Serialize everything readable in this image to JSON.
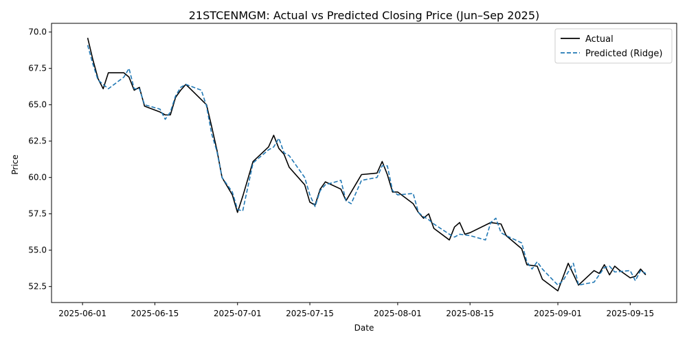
{
  "chart_data": {
    "type": "line",
    "title": "21STCENMGM: Actual vs Predicted Closing Price (Jun–Sep 2025)",
    "xlabel": "Date",
    "ylabel": "Price",
    "x_ticks": [
      "2025-06-01",
      "2025-06-15",
      "2025-07-01",
      "2025-07-15",
      "2025-08-01",
      "2025-08-15",
      "2025-09-01",
      "2025-09-15"
    ],
    "y_ticks": [
      52.5,
      55.0,
      57.5,
      60.0,
      62.5,
      65.0,
      67.5,
      70.0
    ],
    "y_tick_labels": [
      "52.5",
      "55.0",
      "57.5",
      "60.0",
      "62.5",
      "65.0",
      "67.5",
      "70.0"
    ],
    "xlim": [
      "2025-05-26",
      "2025-09-24"
    ],
    "ylim": [
      51.4,
      70.6
    ],
    "legend_position": "top-right",
    "grid": false,
    "series": [
      {
        "name": "Actual",
        "color": "#000000",
        "style": "solid",
        "points": [
          [
            "2025-06-02",
            69.6
          ],
          [
            "2025-06-03",
            68.1
          ],
          [
            "2025-06-04",
            66.8
          ],
          [
            "2025-06-05",
            66.1
          ],
          [
            "2025-06-06",
            67.2
          ],
          [
            "2025-06-09",
            67.2
          ],
          [
            "2025-06-10",
            66.9
          ],
          [
            "2025-06-11",
            66.0
          ],
          [
            "2025-06-12",
            66.2
          ],
          [
            "2025-06-13",
            64.9
          ],
          [
            "2025-06-16",
            64.5
          ],
          [
            "2025-06-17",
            64.3
          ],
          [
            "2025-06-18",
            64.3
          ],
          [
            "2025-06-19",
            65.5
          ],
          [
            "2025-06-20",
            66.0
          ],
          [
            "2025-06-21",
            66.4
          ],
          [
            "2025-06-25",
            65.0
          ],
          [
            "2025-06-26",
            63.5
          ],
          [
            "2025-06-27",
            61.9
          ],
          [
            "2025-06-28",
            60.0
          ],
          [
            "2025-06-30",
            58.8
          ],
          [
            "2025-07-01",
            57.6
          ],
          [
            "2025-07-02",
            58.7
          ],
          [
            "2025-07-04",
            61.1
          ],
          [
            "2025-07-07",
            62.1
          ],
          [
            "2025-07-08",
            62.9
          ],
          [
            "2025-07-09",
            62.0
          ],
          [
            "2025-07-10",
            61.6
          ],
          [
            "2025-07-11",
            60.7
          ],
          [
            "2025-07-14",
            59.5
          ],
          [
            "2025-07-15",
            58.3
          ],
          [
            "2025-07-16",
            58.1
          ],
          [
            "2025-07-17",
            59.2
          ],
          [
            "2025-07-18",
            59.7
          ],
          [
            "2025-07-21",
            59.2
          ],
          [
            "2025-07-22",
            58.4
          ],
          [
            "2025-07-24",
            59.6
          ],
          [
            "2025-07-25",
            60.2
          ],
          [
            "2025-07-28",
            60.3
          ],
          [
            "2025-07-29",
            61.1
          ],
          [
            "2025-07-30",
            60.2
          ],
          [
            "2025-07-31",
            59.0
          ],
          [
            "2025-08-01",
            59.0
          ],
          [
            "2025-08-04",
            58.2
          ],
          [
            "2025-08-05",
            57.6
          ],
          [
            "2025-08-06",
            57.2
          ],
          [
            "2025-08-07",
            57.5
          ],
          [
            "2025-08-08",
            56.5
          ],
          [
            "2025-08-11",
            55.7
          ],
          [
            "2025-08-12",
            56.6
          ],
          [
            "2025-08-13",
            56.9
          ],
          [
            "2025-08-14",
            56.1
          ],
          [
            "2025-08-15",
            56.2
          ],
          [
            "2025-08-19",
            56.9
          ],
          [
            "2025-08-21",
            56.8
          ],
          [
            "2025-08-22",
            56.0
          ],
          [
            "2025-08-25",
            55.1
          ],
          [
            "2025-08-26",
            54.0
          ],
          [
            "2025-08-28",
            53.9
          ],
          [
            "2025-08-29",
            53.0
          ],
          [
            "2025-09-01",
            52.2
          ],
          [
            "2025-09-03",
            54.1
          ],
          [
            "2025-09-05",
            52.6
          ],
          [
            "2025-09-08",
            53.6
          ],
          [
            "2025-09-09",
            53.4
          ],
          [
            "2025-09-10",
            54.0
          ],
          [
            "2025-09-11",
            53.3
          ],
          [
            "2025-09-12",
            53.9
          ],
          [
            "2025-09-13",
            53.6
          ],
          [
            "2025-09-15",
            53.1
          ],
          [
            "2025-09-16",
            53.2
          ],
          [
            "2025-09-17",
            53.7
          ],
          [
            "2025-09-18",
            53.3
          ]
        ]
      },
      {
        "name": "Predicted (Ridge)",
        "color": "#1f77b4",
        "style": "dashed",
        "points": [
          [
            "2025-06-02",
            69.1
          ],
          [
            "2025-06-03",
            67.8
          ],
          [
            "2025-06-04",
            66.7
          ],
          [
            "2025-06-06",
            66.1
          ],
          [
            "2025-06-09",
            66.9
          ],
          [
            "2025-06-10",
            67.5
          ],
          [
            "2025-06-11",
            66.1
          ],
          [
            "2025-06-12",
            66.1
          ],
          [
            "2025-06-13",
            65.0
          ],
          [
            "2025-06-16",
            64.7
          ],
          [
            "2025-06-17",
            64.0
          ],
          [
            "2025-06-18",
            64.5
          ],
          [
            "2025-06-19",
            65.6
          ],
          [
            "2025-06-20",
            66.2
          ],
          [
            "2025-06-21",
            66.4
          ],
          [
            "2025-06-24",
            66.0
          ],
          [
            "2025-06-25",
            64.9
          ],
          [
            "2025-06-26",
            63.0
          ],
          [
            "2025-06-27",
            61.8
          ],
          [
            "2025-06-28",
            60.0
          ],
          [
            "2025-06-30",
            59.0
          ],
          [
            "2025-07-01",
            57.8
          ],
          [
            "2025-07-02",
            57.7
          ],
          [
            "2025-07-04",
            61.0
          ],
          [
            "2025-07-07",
            61.9
          ],
          [
            "2025-07-08",
            62.1
          ],
          [
            "2025-07-09",
            62.7
          ],
          [
            "2025-07-10",
            61.7
          ],
          [
            "2025-07-11",
            61.5
          ],
          [
            "2025-07-14",
            60.0
          ],
          [
            "2025-07-15",
            58.8
          ],
          [
            "2025-07-16",
            58.0
          ],
          [
            "2025-07-17",
            59.1
          ],
          [
            "2025-07-18",
            59.5
          ],
          [
            "2025-07-21",
            59.8
          ],
          [
            "2025-07-22",
            58.4
          ],
          [
            "2025-07-23",
            58.2
          ],
          [
            "2025-07-25",
            59.8
          ],
          [
            "2025-07-28",
            60.0
          ],
          [
            "2025-07-29",
            60.8
          ],
          [
            "2025-07-30",
            60.8
          ],
          [
            "2025-07-31",
            59.1
          ],
          [
            "2025-08-01",
            58.8
          ],
          [
            "2025-08-04",
            58.9
          ],
          [
            "2025-08-05",
            57.6
          ],
          [
            "2025-08-06",
            57.3
          ],
          [
            "2025-08-07",
            57.1
          ],
          [
            "2025-08-08",
            56.8
          ],
          [
            "2025-08-11",
            56.1
          ],
          [
            "2025-08-12",
            55.9
          ],
          [
            "2025-08-13",
            56.1
          ],
          [
            "2025-08-15",
            56.0
          ],
          [
            "2025-08-18",
            55.7
          ],
          [
            "2025-08-19",
            56.9
          ],
          [
            "2025-08-20",
            57.2
          ],
          [
            "2025-08-21",
            56.2
          ],
          [
            "2025-08-22",
            56.0
          ],
          [
            "2025-08-25",
            55.5
          ],
          [
            "2025-08-26",
            54.2
          ],
          [
            "2025-08-27",
            53.7
          ],
          [
            "2025-08-28",
            54.2
          ],
          [
            "2025-08-29",
            53.7
          ],
          [
            "2025-09-01",
            52.6
          ],
          [
            "2025-09-02",
            52.9
          ],
          [
            "2025-09-04",
            54.1
          ],
          [
            "2025-09-05",
            52.6
          ],
          [
            "2025-09-08",
            52.8
          ],
          [
            "2025-09-10",
            53.8
          ],
          [
            "2025-09-11",
            53.9
          ],
          [
            "2025-09-12",
            53.5
          ],
          [
            "2025-09-15",
            53.6
          ],
          [
            "2025-09-16",
            52.9
          ],
          [
            "2025-09-17",
            53.6
          ],
          [
            "2025-09-18",
            53.4
          ]
        ]
      }
    ]
  }
}
